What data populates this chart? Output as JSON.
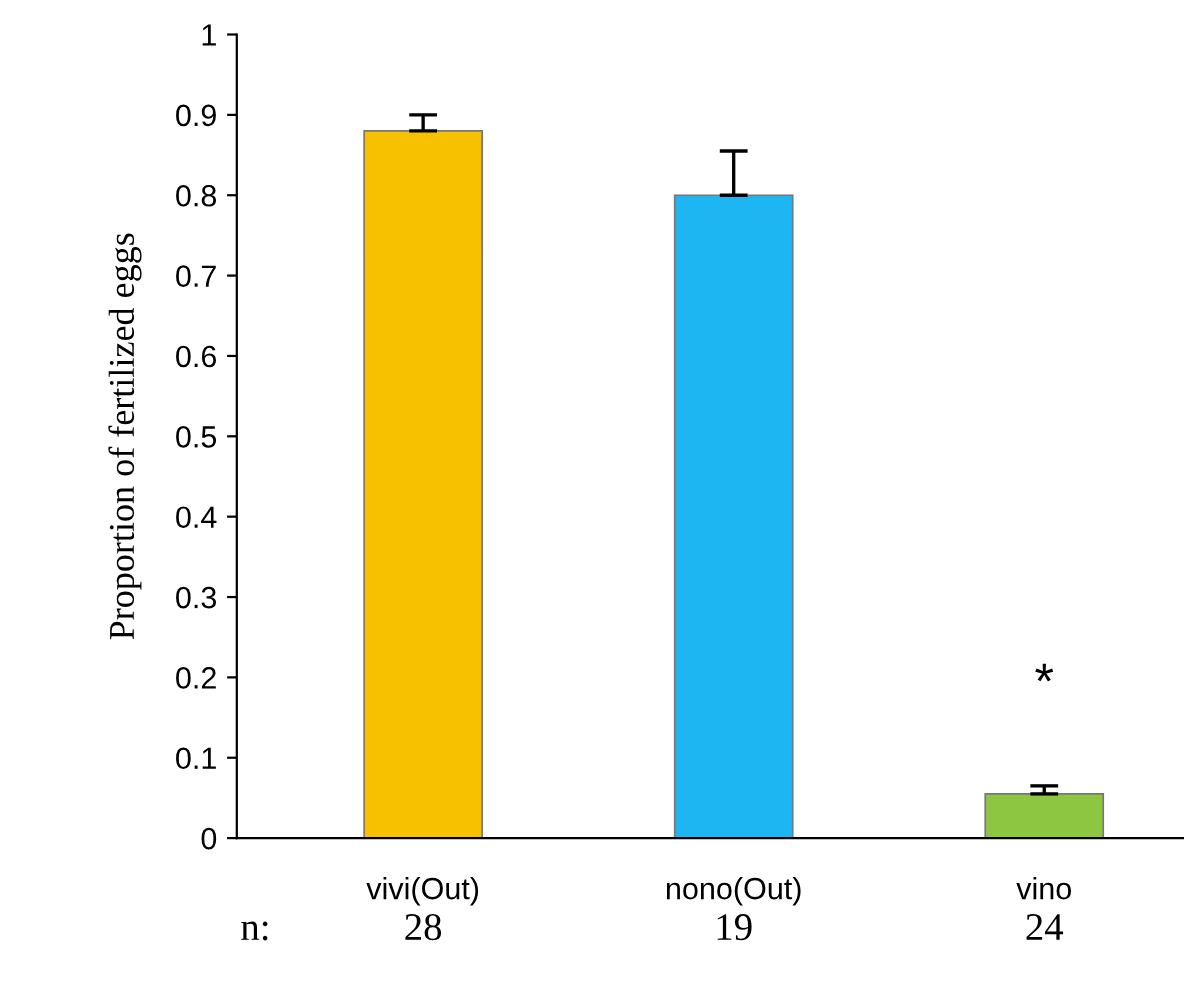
{
  "chart_data": {
    "type": "bar",
    "ylabel": "Proportion of fertilized eggs",
    "categories": [
      "vivi(Out)",
      "nono(Out)",
      "vino"
    ],
    "values": [
      0.88,
      0.8,
      0.055
    ],
    "colors": [
      "#f7c100",
      "#1db6f2",
      "#8dc641"
    ],
    "errors": [
      [
        0.88,
        0.9
      ],
      [
        0.8,
        0.855
      ],
      [
        0.055,
        0.065
      ]
    ],
    "ylim": [
      0,
      1
    ],
    "yticks": [
      0,
      0.1,
      0.2,
      0.3,
      0.4,
      0.5,
      0.6,
      0.7,
      0.8,
      0.9,
      1
    ],
    "grid": false,
    "annotations": [
      "*",
      "n:",
      "28",
      "19",
      "24"
    ]
  }
}
